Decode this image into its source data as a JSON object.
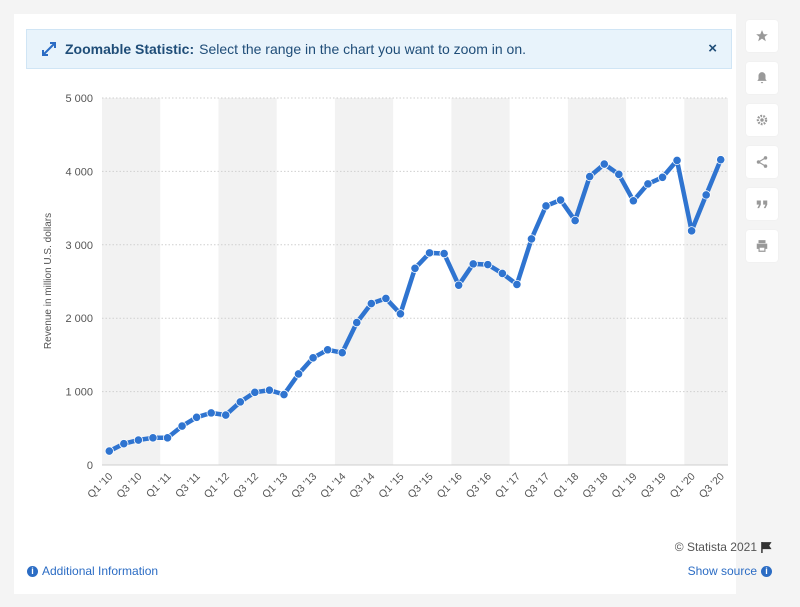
{
  "banner": {
    "title": "Zoomable Statistic:",
    "text": "Select the range in the chart you want to zoom in on.",
    "close_label": "×"
  },
  "toolbar": {
    "icons": [
      "star-icon",
      "bell-icon",
      "gear-icon",
      "share-icon",
      "quote-icon",
      "print-icon"
    ]
  },
  "footer": {
    "credit": "© Statista 2021",
    "additional_info": "Additional Information",
    "show_source": "Show source"
  },
  "colors": {
    "line": "#2f74d0",
    "band": "#f2f2f2",
    "grid": "#cfcfcf",
    "accent_link": "#2b6cc4"
  },
  "chart_data": {
    "type": "line",
    "ylabel": "Revenue in million U.S. dollars",
    "xlabel": "",
    "ylim": [
      0,
      5000
    ],
    "yticks": [
      0,
      1000,
      2000,
      3000,
      4000,
      5000
    ],
    "ytick_labels": [
      "0",
      "1 000",
      "2 000",
      "3 000",
      "4 000",
      "5 000"
    ],
    "grid": true,
    "x": [
      "Q1 '10",
      "Q2 '10",
      "Q3 '10",
      "Q4 '10",
      "Q1 '11",
      "Q2 '11",
      "Q3 '11",
      "Q4 '11",
      "Q1 '12",
      "Q2 '12",
      "Q3 '12",
      "Q4 '12",
      "Q1 '13",
      "Q2 '13",
      "Q3 '13",
      "Q4 '13",
      "Q1 '14",
      "Q2 '14",
      "Q3 '14",
      "Q4 '14",
      "Q1 '15",
      "Q2 '15",
      "Q3 '15",
      "Q4 '15",
      "Q1 '16",
      "Q2 '16",
      "Q3 '16",
      "Q4 '16",
      "Q1 '17",
      "Q2 '17",
      "Q3 '17",
      "Q4 '17",
      "Q1 '18",
      "Q2 '18",
      "Q3 '18",
      "Q4 '18",
      "Q1 '19",
      "Q2 '19",
      "Q3 '19",
      "Q4 '19",
      "Q1 '20",
      "Q2 '20",
      "Q3 '20"
    ],
    "xtick_labels": [
      "Q1 '10",
      "Q3 '10",
      "Q1 '11",
      "Q3 '11",
      "Q1 '12",
      "Q3 '12",
      "Q1 '13",
      "Q3 '13",
      "Q1 '14",
      "Q3 '14",
      "Q1 '15",
      "Q3 '15",
      "Q1 '16",
      "Q3 '16",
      "Q1 '17",
      "Q3 '17",
      "Q1 '18",
      "Q3 '18",
      "Q1 '19",
      "Q3 '19",
      "Q1 '20",
      "Q3 '20"
    ],
    "series": [
      {
        "values": [
          190,
          290,
          340,
          370,
          370,
          530,
          650,
          710,
          680,
          860,
          990,
          1020,
          960,
          1240,
          1460,
          1570,
          1530,
          1940,
          2200,
          2270,
          2060,
          2680,
          2890,
          2880,
          2450,
          2740,
          2730,
          2610,
          2460,
          3080,
          3530,
          3610,
          3330,
          3930,
          4100,
          3960,
          3600,
          3830,
          3920,
          4150,
          3190,
          3680,
          4160
        ]
      }
    ]
  }
}
